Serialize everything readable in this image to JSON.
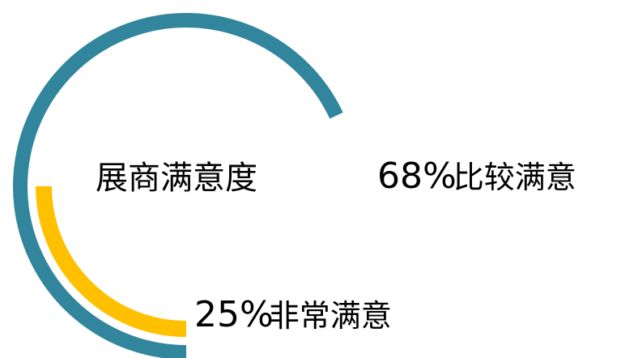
{
  "chart_data": {
    "type": "pie",
    "title": "展商满意度",
    "series": [
      {
        "name": "比较满意",
        "value": 68,
        "color": "#31859C"
      },
      {
        "name": "非常满意",
        "value": 25,
        "color": "#FFC000"
      }
    ],
    "labels": [
      {
        "percent": "68%",
        "text": "比较满意"
      },
      {
        "percent": "25%",
        "text": "非常满意"
      }
    ]
  }
}
